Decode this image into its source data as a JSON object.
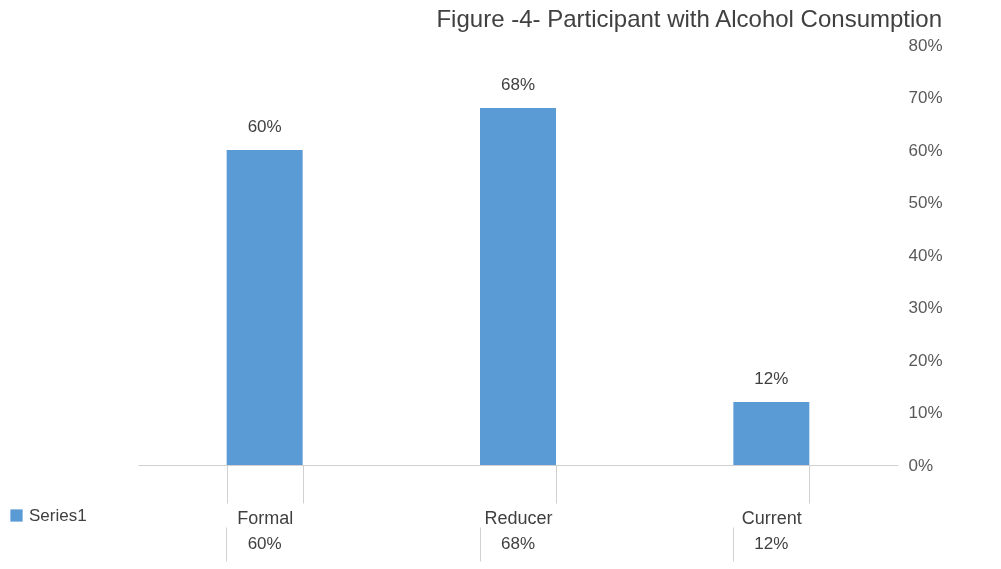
{
  "chart_data": {
    "type": "bar",
    "title": "Figure -4- Participant  with Alcohol Consumption",
    "categories": [
      "Formal",
      "Reducer",
      "Current"
    ],
    "series": [
      {
        "name": "Series1",
        "color": "#5b9bd5",
        "values": [
          60,
          68,
          12
        ],
        "value_labels": [
          "60%",
          "68%",
          "12%"
        ]
      }
    ],
    "ylim": [
      0,
      80
    ],
    "yticks": [
      {
        "value": 0,
        "label": "0%"
      },
      {
        "value": 10,
        "label": "10%"
      },
      {
        "value": 20,
        "label": "20%"
      },
      {
        "value": 30,
        "label": "30%"
      },
      {
        "value": 40,
        "label": "40%"
      },
      {
        "value": 50,
        "label": "50%"
      },
      {
        "value": 60,
        "label": "60%"
      },
      {
        "value": 70,
        "label": "70%"
      },
      {
        "value": 80,
        "label": "80%"
      }
    ],
    "grid": false,
    "legend": "bottom left"
  }
}
